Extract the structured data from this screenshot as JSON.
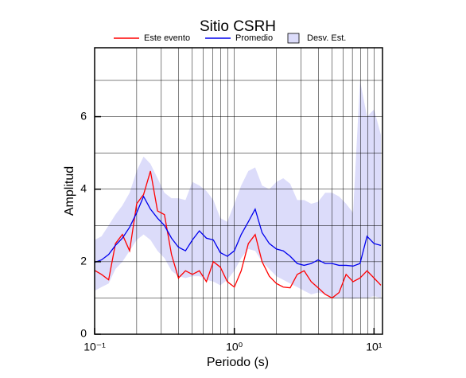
{
  "chart_data": {
    "type": "line",
    "title": "Sitio CSRH",
    "x_label": "Periodo (s)",
    "y_label": "Amplitud",
    "xscale": "log",
    "grid": true,
    "xlim": [
      0.1,
      11.5
    ],
    "ylim": [
      0,
      7.9
    ],
    "xticks": [
      {
        "value": 0.1,
        "label": "10⁻¹"
      },
      {
        "value": 1,
        "label": "10⁰"
      },
      {
        "value": 10,
        "label": "10¹"
      }
    ],
    "xminor": [
      0.2,
      0.3,
      0.4,
      0.5,
      0.6,
      0.7,
      0.8,
      0.9,
      2,
      3,
      4,
      5,
      6,
      7,
      8,
      9
    ],
    "yticks": [
      0,
      2,
      4,
      6
    ],
    "yminor": [
      1,
      3,
      5,
      7
    ],
    "x": [
      0.1,
      0.112,
      0.126,
      0.141,
      0.158,
      0.178,
      0.2,
      0.224,
      0.251,
      0.282,
      0.316,
      0.355,
      0.398,
      0.447,
      0.501,
      0.562,
      0.631,
      0.708,
      0.794,
      0.891,
      1.0,
      1.12,
      1.26,
      1.41,
      1.58,
      1.78,
      2.0,
      2.24,
      2.51,
      2.82,
      3.16,
      3.55,
      3.98,
      4.47,
      5.01,
      5.62,
      6.31,
      7.08,
      7.94,
      8.91,
      10.0,
      11.2
    ],
    "band": {
      "name": "Desv. Est.",
      "color": "#dcdcfa",
      "upper": [
        2.6,
        2.7,
        3.0,
        3.3,
        3.55,
        3.9,
        4.5,
        4.9,
        4.7,
        4.3,
        3.9,
        3.75,
        3.75,
        3.7,
        4.2,
        4.1,
        3.95,
        3.7,
        3.2,
        3.1,
        3.6,
        4.1,
        4.5,
        4.6,
        4.1,
        4.0,
        4.2,
        4.3,
        4.15,
        3.7,
        3.7,
        3.6,
        3.65,
        3.9,
        3.9,
        3.8,
        3.6,
        3.35,
        7.0,
        6.0,
        6.2,
        5.5
      ],
      "lower": [
        1.2,
        1.3,
        1.4,
        1.8,
        2.0,
        2.3,
        2.6,
        2.75,
        2.6,
        2.3,
        2.1,
        1.75,
        1.6,
        1.55,
        1.6,
        1.6,
        1.5,
        1.45,
        1.35,
        1.5,
        1.75,
        2.1,
        2.35,
        2.3,
        2.0,
        1.8,
        1.6,
        1.5,
        1.4,
        1.3,
        1.2,
        1.1,
        1.15,
        1.1,
        1.0,
        1.0,
        1.0,
        0.98,
        1.0,
        1.0,
        1.05,
        1.0
      ]
    },
    "series": [
      {
        "name": "Este evento",
        "color": "#ff0000",
        "values": [
          1.76,
          1.65,
          1.5,
          2.5,
          2.75,
          2.3,
          3.6,
          3.85,
          4.5,
          3.4,
          3.3,
          2.2,
          1.55,
          1.75,
          1.65,
          1.75,
          1.45,
          2.0,
          1.85,
          1.45,
          1.3,
          1.75,
          2.5,
          2.75,
          2.0,
          1.6,
          1.4,
          1.3,
          1.28,
          1.65,
          1.75,
          1.45,
          1.28,
          1.1,
          1.0,
          1.15,
          1.65,
          1.45,
          1.55,
          1.75,
          1.55,
          1.35
        ]
      },
      {
        "name": "Promedio",
        "color": "#0000ee",
        "values": [
          1.98,
          2.05,
          2.2,
          2.45,
          2.65,
          2.95,
          3.35,
          3.8,
          3.45,
          3.2,
          3.0,
          2.65,
          2.4,
          2.3,
          2.6,
          2.85,
          2.65,
          2.6,
          2.25,
          2.15,
          2.3,
          2.75,
          3.1,
          3.45,
          2.8,
          2.5,
          2.35,
          2.3,
          2.15,
          1.95,
          1.9,
          1.95,
          2.05,
          1.95,
          1.95,
          1.9,
          1.9,
          1.88,
          1.95,
          2.7,
          2.5,
          2.45
        ]
      }
    ]
  }
}
